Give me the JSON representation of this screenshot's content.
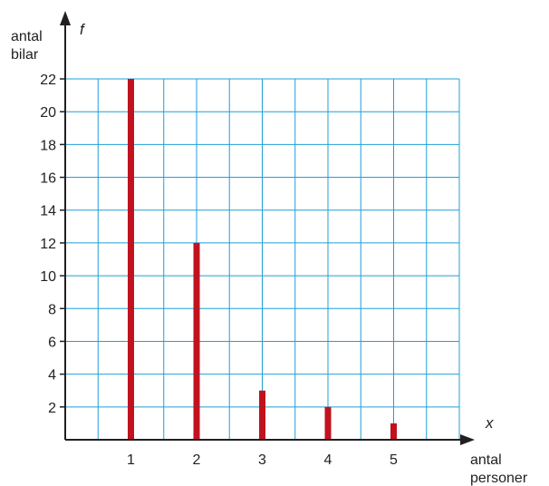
{
  "chart_data": {
    "type": "bar",
    "categories": [
      "1",
      "2",
      "3",
      "4",
      "5"
    ],
    "x": [
      1,
      2,
      3,
      4,
      5
    ],
    "values": [
      22,
      12,
      3,
      2,
      1
    ],
    "xlabel_lines": [
      "antal",
      "personer"
    ],
    "ylabel_lines": [
      "antal",
      "bilar"
    ],
    "x_symbol": "x",
    "y_symbol": "f",
    "y_ticks": [
      2,
      4,
      6,
      8,
      10,
      12,
      14,
      16,
      18,
      20,
      22
    ],
    "x_ticks": [
      1,
      2,
      3,
      4,
      5
    ],
    "xlim": [
      0,
      6
    ],
    "ylim": [
      0,
      22
    ],
    "grid": true,
    "colors": {
      "bar": "#c1121f",
      "grid": "#1f9fd8",
      "axis": "#231f20",
      "text": "#231f20"
    }
  }
}
